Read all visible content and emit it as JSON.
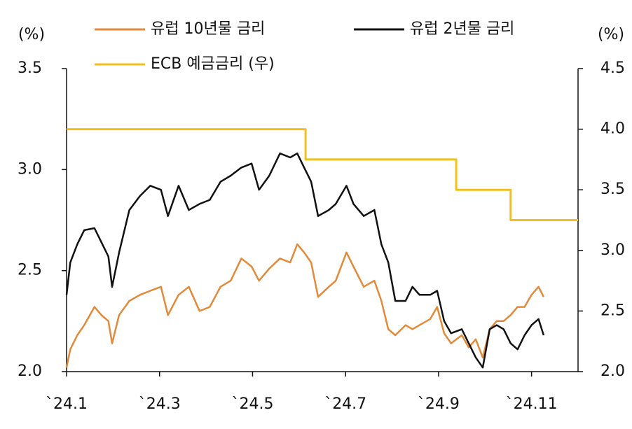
{
  "chart_data": {
    "type": "line",
    "y_label": "(%)",
    "y2_label": "(%)",
    "xlim": [
      1,
      12
    ],
    "xticks": [
      {
        "value": 1,
        "label": "`24.1"
      },
      {
        "value": 3,
        "label": "`24.3"
      },
      {
        "value": 5,
        "label": "`24.5"
      },
      {
        "value": 7,
        "label": "`24.7"
      },
      {
        "value": 9,
        "label": "`24.9"
      },
      {
        "value": 11,
        "label": "`24.11"
      }
    ],
    "ylim": [
      2.0,
      3.5
    ],
    "yticks": [
      {
        "value": 2,
        "label": "2.0"
      },
      2.5,
      {
        "value": 3,
        "label": "3.0"
      },
      3.5
    ],
    "y2lim": [
      2.0,
      4.5
    ],
    "y2ticks": [
      {
        "value": 2,
        "label": "2.0"
      },
      2.5,
      {
        "value": 3,
        "label": "3.0"
      },
      3.5,
      {
        "value": 4,
        "label": "4.0"
      },
      4.5
    ],
    "series": [
      {
        "name": "유럽 10년물 금리",
        "color": "#e08a3c",
        "x": [
          1.0,
          1.08,
          1.23,
          1.38,
          1.6,
          1.75,
          1.9,
          1.98,
          2.13,
          2.35,
          2.58,
          2.8,
          3.03,
          3.18,
          3.41,
          3.63,
          3.86,
          4.08,
          4.31,
          4.53,
          4.76,
          4.98,
          5.14,
          5.36,
          5.59,
          5.81,
          5.96,
          6.11,
          6.26,
          6.41,
          6.64,
          6.79,
          7.02,
          7.17,
          7.39,
          7.62,
          7.77,
          7.92,
          8.07,
          8.29,
          8.44,
          8.59,
          8.82,
          8.97,
          9.12,
          9.27,
          9.5,
          9.65,
          9.8,
          9.95,
          10.1,
          10.25,
          10.4,
          10.55,
          10.7,
          10.85,
          11.0,
          11.15,
          11.26
        ],
        "values": [
          2.02,
          2.11,
          2.18,
          2.23,
          2.32,
          2.28,
          2.25,
          2.14,
          2.28,
          2.35,
          2.38,
          2.4,
          2.42,
          2.28,
          2.38,
          2.42,
          2.3,
          2.32,
          2.42,
          2.45,
          2.56,
          2.52,
          2.45,
          2.51,
          2.56,
          2.54,
          2.63,
          2.59,
          2.54,
          2.37,
          2.42,
          2.45,
          2.59,
          2.52,
          2.42,
          2.45,
          2.35,
          2.21,
          2.18,
          2.23,
          2.21,
          2.23,
          2.26,
          2.32,
          2.19,
          2.14,
          2.18,
          2.12,
          2.16,
          2.07,
          2.21,
          2.25,
          2.25,
          2.28,
          2.32,
          2.32,
          2.38,
          2.42,
          2.37
        ]
      },
      {
        "name": "유럽 2년물 금리",
        "color": "#111111",
        "x": [
          1.0,
          1.08,
          1.23,
          1.38,
          1.6,
          1.75,
          1.9,
          1.98,
          2.13,
          2.35,
          2.58,
          2.8,
          3.03,
          3.18,
          3.41,
          3.63,
          3.86,
          4.08,
          4.31,
          4.53,
          4.76,
          4.98,
          5.14,
          5.36,
          5.59,
          5.81,
          5.96,
          6.11,
          6.26,
          6.41,
          6.64,
          6.79,
          7.02,
          7.17,
          7.39,
          7.62,
          7.77,
          7.92,
          8.07,
          8.29,
          8.44,
          8.59,
          8.82,
          8.97,
          9.12,
          9.27,
          9.5,
          9.65,
          9.8,
          9.95,
          10.1,
          10.25,
          10.4,
          10.55,
          10.7,
          10.85,
          11.0,
          11.15,
          11.26
        ],
        "values": [
          2.38,
          2.54,
          2.63,
          2.7,
          2.71,
          2.64,
          2.57,
          2.42,
          2.59,
          2.8,
          2.87,
          2.92,
          2.9,
          2.77,
          2.92,
          2.8,
          2.83,
          2.85,
          2.94,
          2.97,
          3.01,
          3.03,
          2.9,
          2.97,
          3.08,
          3.06,
          3.08,
          3.01,
          2.94,
          2.77,
          2.8,
          2.83,
          2.92,
          2.83,
          2.77,
          2.8,
          2.63,
          2.54,
          2.35,
          2.35,
          2.42,
          2.38,
          2.38,
          2.4,
          2.25,
          2.19,
          2.21,
          2.14,
          2.07,
          2.02,
          2.21,
          2.23,
          2.21,
          2.14,
          2.11,
          2.18,
          2.23,
          2.26,
          2.18
        ]
      },
      {
        "name": "ECB 예금금리 (우)",
        "color": "#f2c01e",
        "axis": "y2",
        "x": [
          1,
          6.14,
          6.14,
          9.38,
          9.38,
          10.55,
          10.55,
          12
        ],
        "values": [
          4.0,
          4.0,
          3.75,
          3.75,
          3.5,
          3.5,
          3.25,
          3.25
        ]
      }
    ]
  }
}
